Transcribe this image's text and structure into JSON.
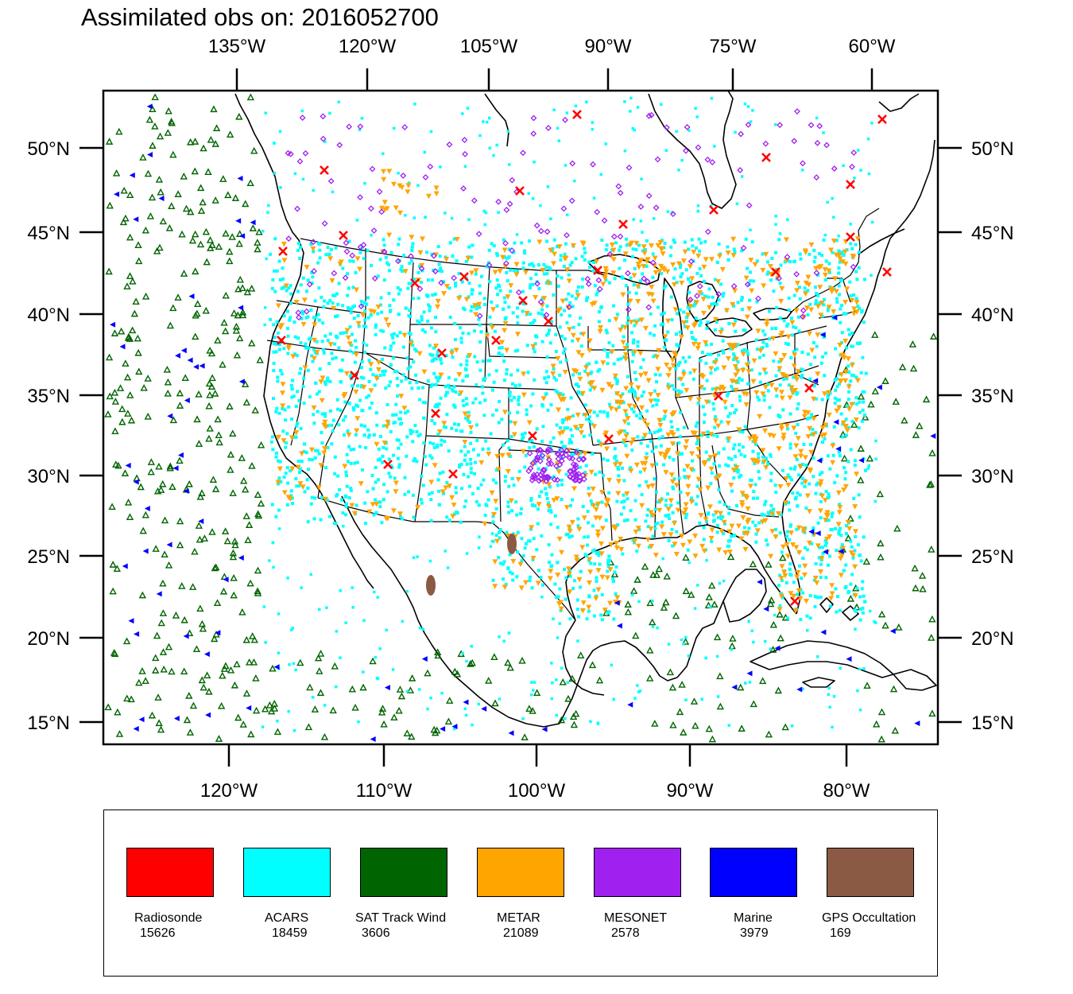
{
  "title": "Assimilated obs on: 2016052700",
  "top_axis_labels": [
    "135°W",
    "120°W",
    "105°W",
    "90°W",
    "75°W",
    "60°W"
  ],
  "bottom_axis_labels": [
    "120°W",
    "110°W",
    "100°W",
    "90°W",
    "80°W"
  ],
  "left_axis_labels": [
    "50°N",
    "45°N",
    "40°N",
    "35°N",
    "30°N",
    "25°N",
    "20°N",
    "15°N"
  ],
  "right_axis_labels": [
    "50°N",
    "45°N",
    "40°N",
    "35°N",
    "30°N",
    "25°N",
    "20°N",
    "15°N"
  ],
  "legend": [
    {
      "label": "Radiosonde",
      "count": "15626",
      "color": "#ff0000"
    },
    {
      "label": "ACARS",
      "count": "18459",
      "color": "#00ffff"
    },
    {
      "label": "SAT Track Wind",
      "count": "3606",
      "color": "#006400"
    },
    {
      "label": "METAR",
      "count": "21089",
      "color": "#ffa500"
    },
    {
      "label": "MESONET",
      "count": "2578",
      "color": "#a020f0"
    },
    {
      "label": "Marine",
      "count": "3979",
      "color": "#0000ff"
    },
    {
      "label": "GPS Occultation",
      "count": "169",
      "color": "#8b5a44"
    }
  ]
}
